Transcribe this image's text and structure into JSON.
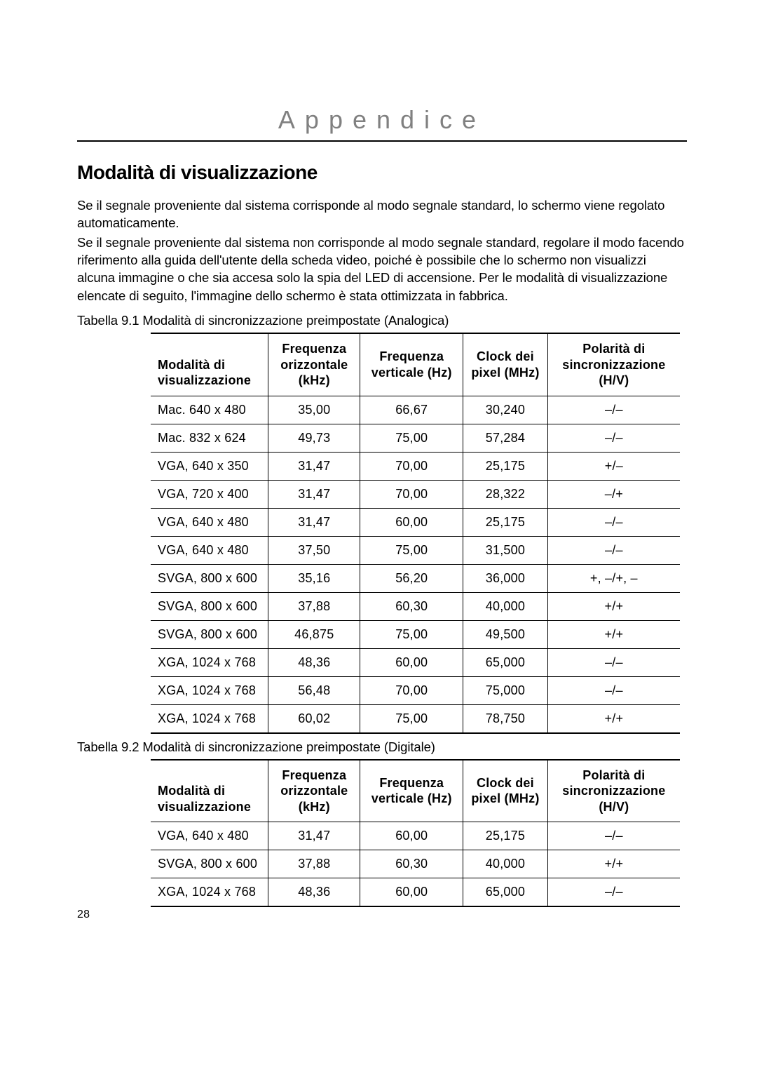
{
  "chapter": "Appendice",
  "section_title": "Modalità di visualizzazione",
  "para1": "Se il segnale proveniente dal sistema corrisponde al modo segnale standard, lo schermo viene regolato automaticamente.",
  "para2": "Se il segnale proveniente dal sistema non corrisponde al modo segnale standard, regolare il modo facendo riferimento alla guida dell'utente della scheda video, poiché è possibile che lo schermo non visualizzi alcuna immagine o che sia accesa solo la spia del LED di accensione. Per le modalità di visualizzazione elencate di seguito, l'immagine dello schermo è stata ottimizzata in fabbrica.",
  "tab1_caption": "Tabella 9.1  Modalità di sincronizzazione preimpostate (Analogica)",
  "headers": {
    "h1": "Modalità di visualizzazione",
    "h2": "Frequenza orizzontale (kHz)",
    "h3": "Frequenza verticale (Hz)",
    "h4": "Clock dei pixel (MHz)",
    "h5": "Polarità di sincronizzazione (H/V)"
  },
  "t1": [
    [
      "Mac. 640 x 480",
      "35,00",
      "66,67",
      "30,240",
      "–/–"
    ],
    [
      "Mac. 832 x 624",
      "49,73",
      "75,00",
      "57,284",
      "–/–"
    ],
    [
      "VGA, 640 x 350",
      "31,47",
      "70,00",
      "25,175",
      "+/–"
    ],
    [
      "VGA, 720 x 400",
      "31,47",
      "70,00",
      "28,322",
      "–/+"
    ],
    [
      "VGA, 640 x 480",
      "31,47",
      "60,00",
      "25,175",
      "–/–"
    ],
    [
      "VGA, 640 x 480",
      "37,50",
      "75,00",
      "31,500",
      "–/–"
    ],
    [
      "SVGA, 800 x 600",
      "35,16",
      "56,20",
      "36,000",
      "+, –/+, –"
    ],
    [
      "SVGA, 800 x 600",
      "37,88",
      "60,30",
      "40,000",
      "+/+"
    ],
    [
      "SVGA, 800 x 600",
      "46,875",
      "75,00",
      "49,500",
      "+/+"
    ],
    [
      "XGA, 1024 x 768",
      "48,36",
      "60,00",
      "65,000",
      "–/–"
    ],
    [
      "XGA, 1024 x 768",
      "56,48",
      "70,00",
      "75,000",
      "–/–"
    ],
    [
      "XGA, 1024 x 768",
      "60,02",
      "75,00",
      "78,750",
      "+/+"
    ]
  ],
  "tab2_caption": "Tabella 9.2  Modalità di sincronizzazione preimpostate (Digitale)",
  "t2": [
    [
      "VGA, 640 x 480",
      "31,47",
      "60,00",
      "25,175",
      "–/–"
    ],
    [
      "SVGA, 800 x 600",
      "37,88",
      "60,30",
      "40,000",
      "+/+"
    ],
    [
      "XGA, 1024 x 768",
      "48,36",
      "60,00",
      "65,000",
      "–/–"
    ]
  ],
  "page_number": "28"
}
